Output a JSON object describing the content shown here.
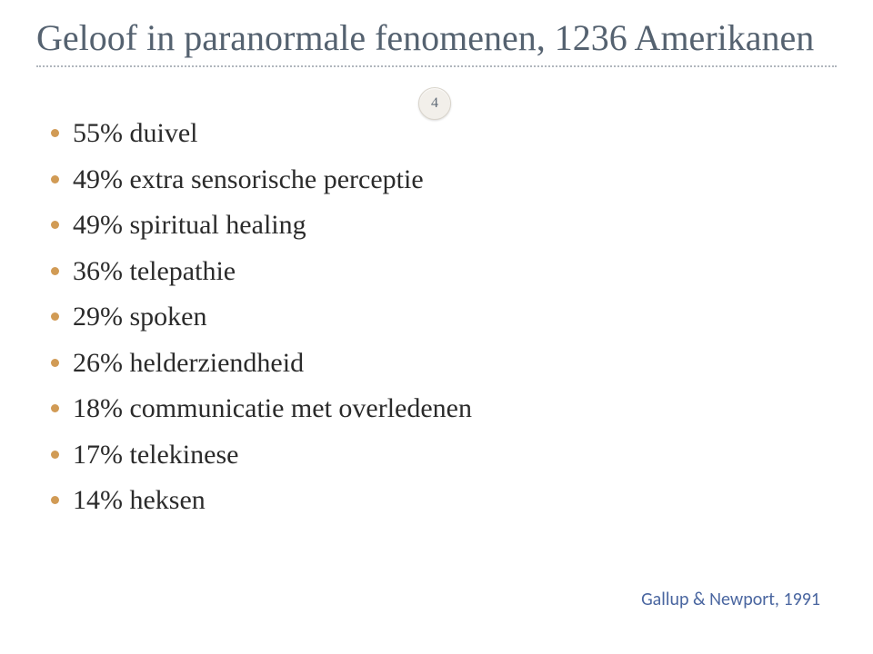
{
  "slide": {
    "title": "Geloof in paranormale fenomenen, 1236 Amerikanen",
    "page_number": "4",
    "bullets": [
      "55% duivel",
      "49% extra sensorische perceptie",
      "49% spiritual healing",
      "36% telepathie",
      "29% spoken",
      "26% helderziendheid",
      "18% communicatie met overledenen",
      "17% telekinese",
      "14% heksen"
    ],
    "citation": "Gallup & Newport, 1991"
  },
  "style": {
    "title_color": "#556270",
    "title_fontsize": 40,
    "bullet_color": "#2b2b2b",
    "bullet_fontsize": 30,
    "bullet_marker_color": "#d19b55",
    "divider_color": "#b0b6bd",
    "badge_bg": "#f2efea",
    "badge_text_color": "#616c78",
    "citation_color": "#4a66a0",
    "citation_fontsize": 20,
    "background": "#ffffff"
  }
}
